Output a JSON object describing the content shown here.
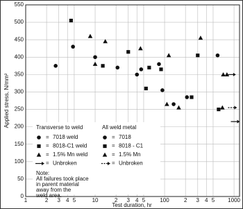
{
  "chart_data": {
    "type": "scatter",
    "y_label": "Applied stress, N/mm²",
    "x_label": "Test duration, hr",
    "xscale": "log",
    "xlim": [
      1,
      1200
    ],
    "ylim": [
      0,
      550
    ],
    "xticks": [
      1,
      2,
      3,
      4,
      5,
      10,
      {
        "value": 20,
        "label": "2"
      },
      {
        "value": 30,
        "label": "3"
      },
      {
        "value": 40,
        "label": "4"
      },
      {
        "value": 50,
        "label": "5"
      },
      100,
      {
        "value": 200,
        "label": "2"
      },
      {
        "value": 300,
        "label": "3"
      },
      {
        "value": 400,
        "label": "4"
      },
      {
        "value": 500,
        "label": "5"
      },
      1000
    ],
    "yticks": [
      0,
      50,
      100,
      150,
      200,
      250,
      300,
      350,
      400,
      450,
      500,
      550
    ],
    "grid": true,
    "legend_titles": [
      "Transverse to weld",
      "All weld metal"
    ],
    "legend_separator": "=",
    "note": [
      "Note:",
      "All failures took place",
      "in parent material",
      "away from the",
      "weld area."
    ],
    "series": [
      {
        "name": "7018 weld",
        "marker": "circle",
        "color": "#111111",
        "x": [
          2.7,
          4.8,
          10,
          21,
          46,
          93,
          135,
          580
        ],
        "values": [
          375,
          430,
          400,
          370,
          365,
          305,
          265,
          405
        ]
      },
      {
        "name": "8018-C1 weld",
        "marker": "square",
        "color": "#111111",
        "x": [
          4.5,
          12.9,
          30,
          60,
          300
        ],
        "values": [
          505,
          375,
          415,
          370,
          405
        ]
      },
      {
        "name": "1.5% Mn weld",
        "marker": "triangle",
        "color": "#111111",
        "x": [
          8.5,
          10,
          14,
          45,
          115,
          330,
          700,
          790
        ],
        "values": [
          460,
          380,
          445,
          425,
          405,
          455,
          350,
          350
        ]
      },
      {
        "name": "Unbroken",
        "marker": "arrow",
        "line_style": "solid",
        "color": "#111111",
        "x": [
          900,
          790
        ],
        "values": [
          215,
          350
        ]
      },
      {
        "name": "7018",
        "marker": "circle",
        "color": "#111111",
        "x": [
          40,
          83,
          210
        ],
        "values": [
          350,
          380,
          285
        ]
      },
      {
        "name": "8018 - C1",
        "marker": "square",
        "color": "#111111",
        "x": [
          54,
          89,
          245,
          600
        ],
        "values": [
          310,
          365,
          285,
          250
        ]
      },
      {
        "name": "1.5% Mn",
        "marker": "triangle",
        "color": "#111111",
        "x": [
          108,
          160,
          680
        ],
        "values": [
          265,
          255,
          255
        ]
      },
      {
        "name": "Unbroken",
        "marker": "arrow",
        "line_style": "dashed",
        "color": "#111111",
        "x": [
          820
        ],
        "values": [
          255
        ]
      }
    ]
  }
}
